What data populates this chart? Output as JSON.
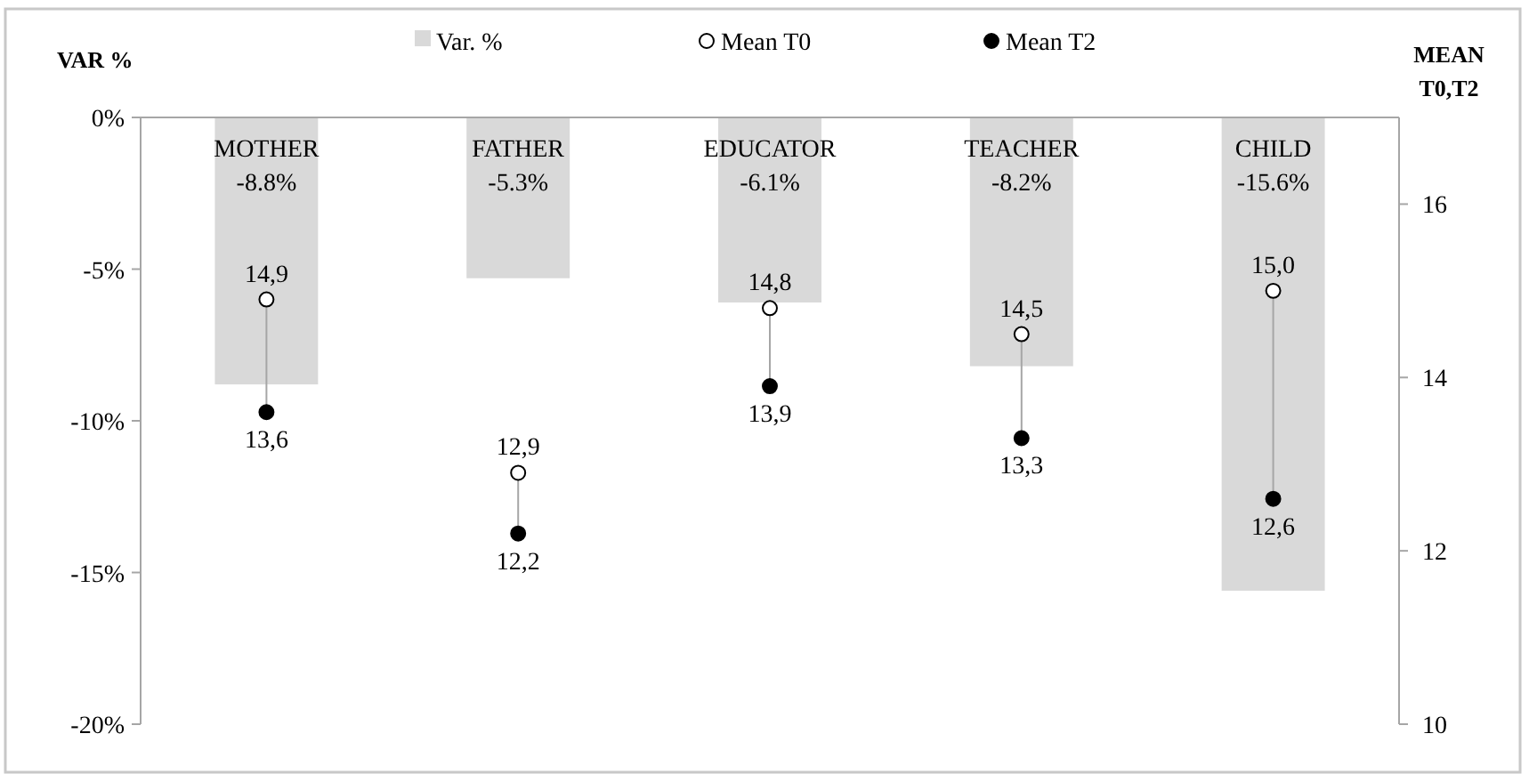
{
  "chart_data": {
    "type": "bar",
    "ylabel": "VAR %",
    "y2label": "MEAN T0,T2",
    "categories": [
      "MOTHER",
      "FATHER",
      "EDUCATOR",
      "TEACHER",
      "CHILD"
    ],
    "series": [
      {
        "name": "Var. %",
        "color": "#d9d9d9",
        "values": [
          -8.8,
          -5.3,
          -6.1,
          -8.2,
          -15.6
        ],
        "value_labels": [
          "-8.8%",
          "-5.3%",
          "-6.1%",
          "-8.2%",
          "-15.6%"
        ]
      },
      {
        "name": "Mean T0",
        "type": "scatter",
        "axis": "y2",
        "color": "#ffffff",
        "values": [
          14.9,
          12.9,
          14.8,
          14.5,
          15.0
        ],
        "value_labels": [
          "14,9",
          "12,9",
          "14,8",
          "14,5",
          "15,0"
        ]
      },
      {
        "name": "Mean T2",
        "type": "scatter",
        "axis": "y2",
        "color": "#000000",
        "values": [
          13.6,
          12.2,
          13.9,
          13.3,
          12.6
        ],
        "value_labels": [
          "13,6",
          "12,2",
          "13,9",
          "13,3",
          "12,6"
        ]
      }
    ],
    "ylim": [
      -20,
      0
    ],
    "yticks": [
      {
        "value": 0,
        "label": "0%"
      },
      {
        "value": -5,
        "label": "-5%"
      },
      {
        "value": -10,
        "label": "-10%"
      },
      {
        "value": -15,
        "label": "-15%"
      },
      {
        "value": -20,
        "label": "-20%"
      }
    ],
    "y2lim": [
      10,
      17
    ],
    "y2ticks": [
      10,
      12,
      14,
      16
    ],
    "legend": "top",
    "marker": "circle",
    "grid": false
  }
}
